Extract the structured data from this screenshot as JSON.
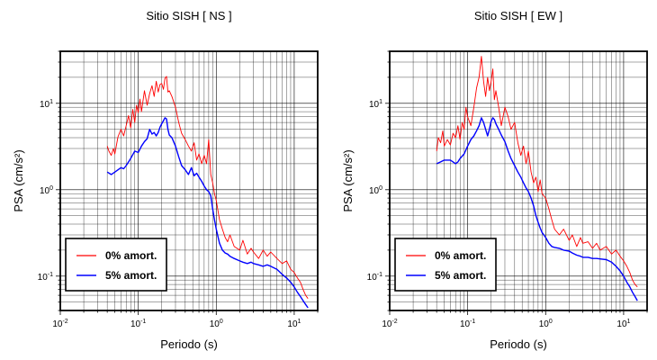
{
  "chart_data": [
    {
      "type": "line",
      "title": "Sitio SISH [ NS ]",
      "xlabel": "Periodo (s)",
      "ylabel": "PSA (cm/s²)",
      "xscale": "log",
      "yscale": "log",
      "xlim": [
        0.01,
        20
      ],
      "ylim": [
        0.04,
        40
      ],
      "grid": true,
      "legend_position": "bottom-left",
      "x_ticks": [
        {
          "value": 0.01,
          "mantissa": "10",
          "exp": "-2"
        },
        {
          "value": 0.1,
          "mantissa": "10",
          "exp": "-1"
        },
        {
          "value": 1,
          "mantissa": "10",
          "exp": "0"
        },
        {
          "value": 10,
          "mantissa": "10",
          "exp": "1"
        }
      ],
      "y_ticks": [
        {
          "value": 0.1,
          "mantissa": "10",
          "exp": "-1"
        },
        {
          "value": 1,
          "mantissa": "10",
          "exp": "0"
        },
        {
          "value": 10,
          "mantissa": "10",
          "exp": "1"
        }
      ],
      "series": [
        {
          "name": "0% amort.",
          "color": "#ff0000",
          "x": [
            0.04,
            0.042,
            0.045,
            0.048,
            0.05,
            0.055,
            0.06,
            0.065,
            0.07,
            0.075,
            0.08,
            0.085,
            0.09,
            0.095,
            0.1,
            0.105,
            0.11,
            0.12,
            0.13,
            0.14,
            0.15,
            0.16,
            0.17,
            0.18,
            0.19,
            0.2,
            0.21,
            0.22,
            0.23,
            0.24,
            0.25,
            0.27,
            0.3,
            0.33,
            0.36,
            0.4,
            0.44,
            0.48,
            0.52,
            0.56,
            0.6,
            0.65,
            0.7,
            0.75,
            0.8,
            0.85,
            0.9,
            0.95,
            1.0,
            1.1,
            1.2,
            1.3,
            1.4,
            1.5,
            1.7,
            2.0,
            2.2,
            2.5,
            2.8,
            3.0,
            3.5,
            4.0,
            4.5,
            5.0,
            6.0,
            7.0,
            8.0,
            9.0,
            10.0,
            11.0,
            12.0,
            13.0,
            14.0,
            15.0
          ],
          "y": [
            3.2,
            2.8,
            2.5,
            3.0,
            2.6,
            4.1,
            5.0,
            4.2,
            5.5,
            7.2,
            5.2,
            8.5,
            6.0,
            9.5,
            7.8,
            11.2,
            8.0,
            14.0,
            9.5,
            13.0,
            16.0,
            12.0,
            18.0,
            13.5,
            16.5,
            17.0,
            14.5,
            19.5,
            20.5,
            13.5,
            14.0,
            12.0,
            9.0,
            6.0,
            4.5,
            3.8,
            3.2,
            2.8,
            3.5,
            2.2,
            2.6,
            2.0,
            2.5,
            2.0,
            3.8,
            1.5,
            1.2,
            0.9,
            0.75,
            0.45,
            0.35,
            0.28,
            0.25,
            0.3,
            0.22,
            0.2,
            0.26,
            0.18,
            0.21,
            0.19,
            0.16,
            0.2,
            0.17,
            0.19,
            0.16,
            0.14,
            0.15,
            0.12,
            0.11,
            0.095,
            0.085,
            0.07,
            0.06,
            0.055
          ]
        },
        {
          "name": "5% amort.",
          "color": "#0000ff",
          "x": [
            0.04,
            0.045,
            0.05,
            0.055,
            0.06,
            0.065,
            0.07,
            0.08,
            0.09,
            0.1,
            0.11,
            0.12,
            0.13,
            0.14,
            0.15,
            0.16,
            0.17,
            0.18,
            0.19,
            0.2,
            0.21,
            0.22,
            0.23,
            0.24,
            0.25,
            0.27,
            0.3,
            0.33,
            0.36,
            0.4,
            0.44,
            0.48,
            0.52,
            0.56,
            0.6,
            0.65,
            0.7,
            0.75,
            0.8,
            0.85,
            0.9,
            0.95,
            1.0,
            1.1,
            1.2,
            1.3,
            1.4,
            1.5,
            1.7,
            2.0,
            2.2,
            2.5,
            2.8,
            3.0,
            3.5,
            4.0,
            4.5,
            5.0,
            6.0,
            7.0,
            8.0,
            9.0,
            10.0,
            11.0,
            12.0,
            13.0,
            14.0,
            15.0
          ],
          "y": [
            1.6,
            1.5,
            1.6,
            1.7,
            1.8,
            1.75,
            1.9,
            2.3,
            2.8,
            2.7,
            3.2,
            3.6,
            3.9,
            5.0,
            4.4,
            4.6,
            4.2,
            4.6,
            5.3,
            5.8,
            6.3,
            6.8,
            6.6,
            5.0,
            4.3,
            4.0,
            3.2,
            2.4,
            1.9,
            1.7,
            1.5,
            1.8,
            1.45,
            1.55,
            1.4,
            1.25,
            1.1,
            1.0,
            0.95,
            0.85,
            0.6,
            0.45,
            0.35,
            0.24,
            0.2,
            0.185,
            0.18,
            0.17,
            0.16,
            0.15,
            0.145,
            0.14,
            0.145,
            0.14,
            0.135,
            0.13,
            0.135,
            0.13,
            0.12,
            0.105,
            0.095,
            0.085,
            0.075,
            0.065,
            0.058,
            0.052,
            0.047,
            0.043
          ]
        }
      ]
    },
    {
      "type": "line",
      "title": "Sitio SISH [ EW ]",
      "xlabel": "Periodo (s)",
      "ylabel": "PSA (cm/s²)",
      "xscale": "log",
      "yscale": "log",
      "xlim": [
        0.01,
        20
      ],
      "ylim": [
        0.04,
        40
      ],
      "grid": true,
      "legend_position": "bottom-left",
      "x_ticks": [
        {
          "value": 0.01,
          "mantissa": "10",
          "exp": "-2"
        },
        {
          "value": 0.1,
          "mantissa": "10",
          "exp": "-1"
        },
        {
          "value": 1,
          "mantissa": "10",
          "exp": "0"
        },
        {
          "value": 10,
          "mantissa": "10",
          "exp": "1"
        }
      ],
      "y_ticks": [
        {
          "value": 0.1,
          "mantissa": "10",
          "exp": "-1"
        },
        {
          "value": 1,
          "mantissa": "10",
          "exp": "0"
        },
        {
          "value": 10,
          "mantissa": "10",
          "exp": "1"
        }
      ],
      "series": [
        {
          "name": "0% amort.",
          "color": "#ff0000",
          "x": [
            0.04,
            0.042,
            0.045,
            0.048,
            0.05,
            0.055,
            0.06,
            0.065,
            0.07,
            0.075,
            0.08,
            0.085,
            0.09,
            0.095,
            0.1,
            0.11,
            0.12,
            0.13,
            0.14,
            0.15,
            0.16,
            0.17,
            0.18,
            0.19,
            0.2,
            0.21,
            0.22,
            0.23,
            0.25,
            0.27,
            0.3,
            0.33,
            0.36,
            0.4,
            0.44,
            0.48,
            0.52,
            0.56,
            0.6,
            0.65,
            0.7,
            0.75,
            0.8,
            0.85,
            0.9,
            1.0,
            1.1,
            1.2,
            1.3,
            1.5,
            1.7,
            2.0,
            2.2,
            2.5,
            2.8,
            3.0,
            3.5,
            4.0,
            4.5,
            5.0,
            6.0,
            7.0,
            8.0,
            9.0,
            10.0,
            11.0,
            12.0,
            13.0,
            14.0,
            15.0
          ],
          "y": [
            2.8,
            4.0,
            3.5,
            4.8,
            3.2,
            3.8,
            3.3,
            4.5,
            4.0,
            5.5,
            3.8,
            6.0,
            5.0,
            9.0,
            7.0,
            5.5,
            9.0,
            15.0,
            20.0,
            35.0,
            18.0,
            12.0,
            20.0,
            14.0,
            18.0,
            25.0,
            11.0,
            14.0,
            9.0,
            5.5,
            9.0,
            7.0,
            5.0,
            6.0,
            3.5,
            2.5,
            3.2,
            2.0,
            2.8,
            1.6,
            1.2,
            1.4,
            0.95,
            1.3,
            0.9,
            0.8,
            0.6,
            0.45,
            0.35,
            0.3,
            0.35,
            0.26,
            0.3,
            0.22,
            0.28,
            0.24,
            0.25,
            0.21,
            0.24,
            0.2,
            0.22,
            0.18,
            0.2,
            0.17,
            0.15,
            0.13,
            0.11,
            0.09,
            0.08,
            0.075
          ]
        },
        {
          "name": "5% amort.",
          "color": "#0000ff",
          "x": [
            0.04,
            0.045,
            0.05,
            0.055,
            0.06,
            0.065,
            0.07,
            0.075,
            0.08,
            0.09,
            0.1,
            0.11,
            0.12,
            0.13,
            0.14,
            0.15,
            0.16,
            0.17,
            0.18,
            0.19,
            0.2,
            0.21,
            0.22,
            0.23,
            0.25,
            0.27,
            0.3,
            0.33,
            0.36,
            0.4,
            0.44,
            0.48,
            0.52,
            0.56,
            0.6,
            0.65,
            0.7,
            0.75,
            0.8,
            0.85,
            0.9,
            1.0,
            1.1,
            1.2,
            1.3,
            1.5,
            1.7,
            2.0,
            2.2,
            2.5,
            2.8,
            3.0,
            3.5,
            4.0,
            4.5,
            5.0,
            6.0,
            7.0,
            8.0,
            9.0,
            10.0,
            11.0,
            12.0,
            13.0,
            14.0,
            15.0
          ],
          "y": [
            2.0,
            2.1,
            2.2,
            2.2,
            2.2,
            2.1,
            2.0,
            2.1,
            2.3,
            2.6,
            3.2,
            3.8,
            4.2,
            4.8,
            5.5,
            6.8,
            6.0,
            5.0,
            4.2,
            5.0,
            6.2,
            6.8,
            6.5,
            5.8,
            5.0,
            4.3,
            3.6,
            2.8,
            2.3,
            1.9,
            1.6,
            1.4,
            1.2,
            1.05,
            0.95,
            0.8,
            0.65,
            0.5,
            0.42,
            0.36,
            0.32,
            0.28,
            0.24,
            0.22,
            0.215,
            0.21,
            0.2,
            0.195,
            0.185,
            0.175,
            0.17,
            0.165,
            0.165,
            0.16,
            0.16,
            0.158,
            0.155,
            0.145,
            0.13,
            0.115,
            0.1,
            0.085,
            0.075,
            0.065,
            0.058,
            0.052
          ]
        }
      ]
    }
  ]
}
